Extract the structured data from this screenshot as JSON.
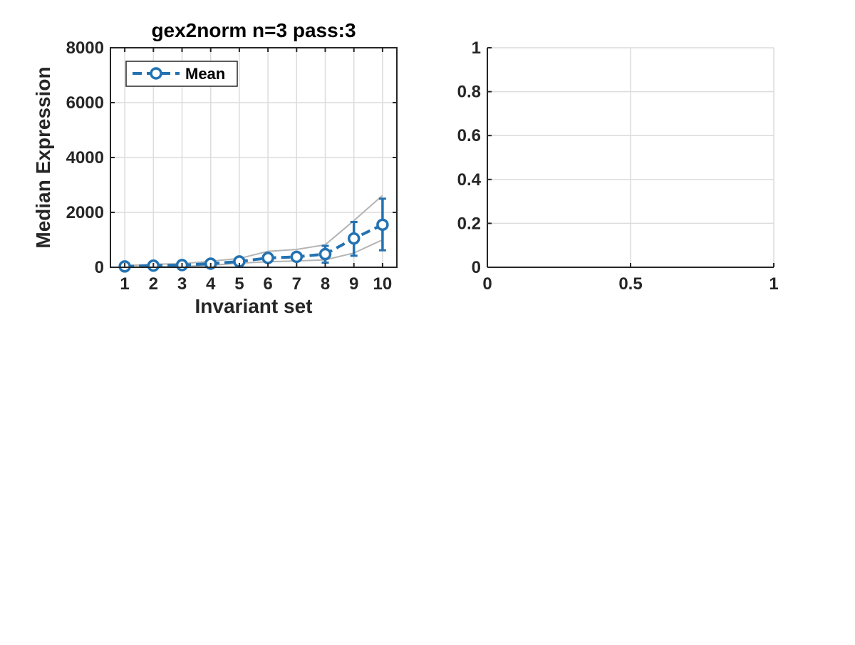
{
  "chart_data": [
    {
      "type": "line",
      "title": "gex2norm n=3 pass:3",
      "xlabel": "Invariant set",
      "ylabel": "Median Expression",
      "x": [
        1,
        2,
        3,
        4,
        5,
        6,
        7,
        8,
        9,
        10
      ],
      "xticks": [
        "1",
        "2",
        "3",
        "4",
        "5",
        "6",
        "7",
        "8",
        "9",
        "10"
      ],
      "xlim": [
        0.5,
        10.5
      ],
      "ylim": [
        0,
        8000
      ],
      "yticks": [
        "0",
        "2000",
        "4000",
        "6000",
        "8000"
      ],
      "grid": true,
      "legend_position": "top-left",
      "series": [
        {
          "name": "Mean",
          "style": "dashed-circle-errorbar",
          "color": "#2372b2",
          "values": [
            30,
            60,
            80,
            130,
            210,
            340,
            380,
            480,
            1050,
            1550
          ],
          "err_low": [
            0,
            30,
            30,
            70,
            150,
            220,
            250,
            170,
            420,
            620
          ],
          "err_high": [
            70,
            110,
            130,
            200,
            280,
            470,
            510,
            780,
            1650,
            2500
          ]
        },
        {
          "style": "thin-grey",
          "color": "#b4b4b4",
          "values": [
            60,
            110,
            130,
            220,
            320,
            580,
            650,
            820,
            1700,
            2620
          ]
        },
        {
          "style": "thin-grey",
          "color": "#b4b4b4",
          "values": [
            10,
            20,
            30,
            70,
            150,
            200,
            230,
            270,
            520,
            1000
          ]
        }
      ]
    },
    {
      "type": "line",
      "title": "",
      "xlabel": "",
      "ylabel": "",
      "xlim": [
        0,
        1
      ],
      "ylim": [
        0,
        1
      ],
      "xticks": [
        "0",
        "0.5",
        "1"
      ],
      "yticks": [
        "0",
        "0.2",
        "0.4",
        "0.6",
        "0.8",
        "1"
      ],
      "grid": true,
      "series": []
    }
  ]
}
